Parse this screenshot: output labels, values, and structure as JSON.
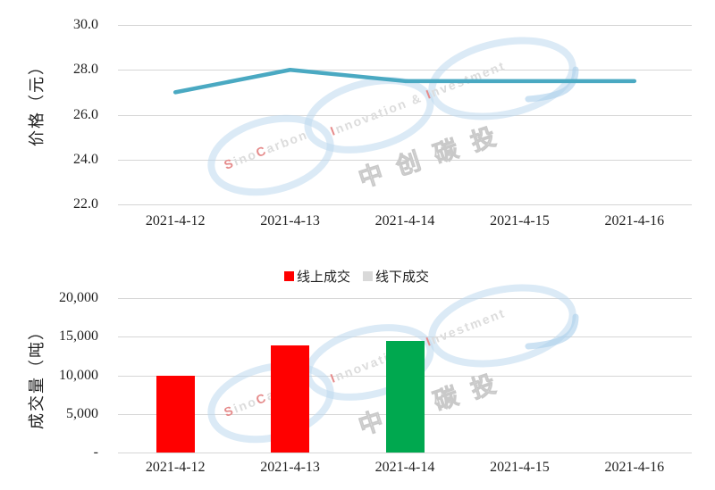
{
  "watermark": {
    "sinocarbon": [
      "S",
      "ino",
      "C",
      "arbon"
    ],
    "innovation": [
      "I",
      "nnovation & ",
      "I",
      "nvestment"
    ],
    "chinese": "中创碳投"
  },
  "legend": {
    "items": [
      {
        "label": "线上成交",
        "color": "#FF0000"
      },
      {
        "label": "线下成交",
        "color": "#D9D9D9"
      }
    ]
  },
  "chart_data": [
    {
      "id": "price",
      "type": "line",
      "title": "",
      "ylabel": "价格（元）",
      "xlabel": "",
      "x": [
        "2021-4-12",
        "2021-4-13",
        "2021-4-14",
        "2021-4-15",
        "2021-4-16"
      ],
      "series": [
        {
          "name": "价格",
          "color": "#4AA9C2",
          "values": [
            27.0,
            28.0,
            27.5,
            27.5,
            27.5
          ]
        }
      ],
      "ylim": [
        22.0,
        30.0
      ],
      "yticks": [
        {
          "value": 30.0,
          "label": "30.0"
        },
        {
          "value": 28.0,
          "label": "28.0"
        },
        {
          "value": 26.0,
          "label": "26.0"
        },
        {
          "value": 24.0,
          "label": "24.0"
        },
        {
          "value": 22.0,
          "label": "22.0"
        }
      ],
      "grid": true,
      "legend_position": "none"
    },
    {
      "id": "volume",
      "type": "bar",
      "title": "",
      "ylabel": "成交量（吨）",
      "xlabel": "",
      "categories": [
        "2021-4-12",
        "2021-4-13",
        "2021-4-14",
        "2021-4-15",
        "2021-4-16"
      ],
      "bars": [
        {
          "category": "2021-4-12",
          "value": 10000,
          "color": "#FF0000",
          "series": "线上成交"
        },
        {
          "category": "2021-4-13",
          "value": 13900,
          "color": "#FF0000",
          "series": "线上成交"
        },
        {
          "category": "2021-4-14",
          "value": 14400,
          "color": "#00A84F",
          "series": ""
        },
        {
          "category": "2021-4-15",
          "value": 0,
          "color": "",
          "series": ""
        },
        {
          "category": "2021-4-16",
          "value": 0,
          "color": "",
          "series": ""
        }
      ],
      "ylim": [
        0,
        20000
      ],
      "yticks": [
        {
          "value": 20000,
          "label": "20,000"
        },
        {
          "value": 15000,
          "label": "15,000"
        },
        {
          "value": 10000,
          "label": "10,000"
        },
        {
          "value": 5000,
          "label": "5,000"
        },
        {
          "value": 0,
          "label": "-"
        }
      ],
      "grid": true,
      "legend_position": "top"
    }
  ]
}
